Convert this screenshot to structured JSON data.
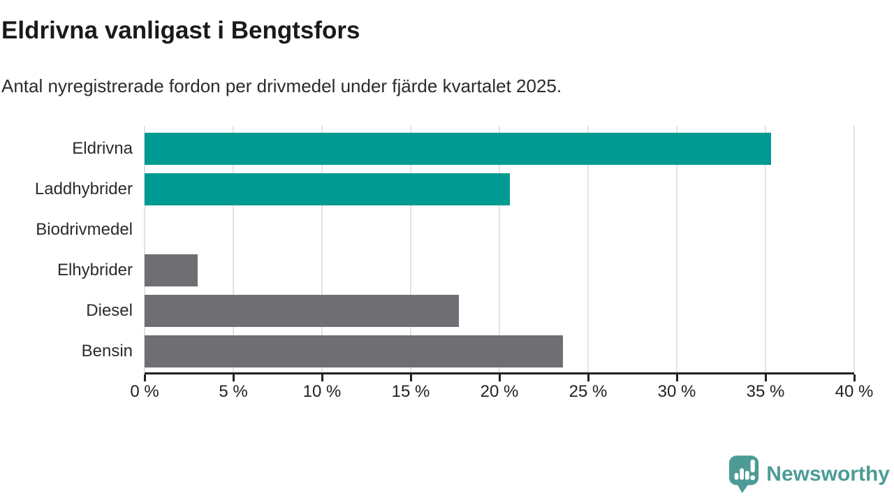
{
  "header": {
    "title": "Eldrivna vanligast i Bengtsfors",
    "subtitle": "Antal nyregistrerade fordon per drivmedel under fjärde kvartalet 2025."
  },
  "chart_data": {
    "type": "bar",
    "orientation": "horizontal",
    "title": "Eldrivna vanligast i Bengtsfors",
    "subtitle": "Antal nyregistrerade fordon per drivmedel under fjärde kvartalet 2025.",
    "categories": [
      "Eldrivna",
      "Laddhybrider",
      "Biodrivmedel",
      "Elhybrider",
      "Diesel",
      "Bensin"
    ],
    "values": [
      35.3,
      20.6,
      0,
      3.0,
      17.7,
      23.6
    ],
    "unit": "%",
    "bar_colors": [
      "#009a93",
      "#009a93",
      "#6f6e73",
      "#6f6e73",
      "#6f6e73",
      "#6f6e73"
    ],
    "xlim": [
      0,
      40
    ],
    "x_ticks": [
      0,
      5,
      10,
      15,
      20,
      25,
      30,
      35,
      40
    ],
    "x_tick_labels": [
      "0 %",
      "5 %",
      "10 %",
      "15 %",
      "20 %",
      "25 %",
      "30 %",
      "35 %",
      "40 %"
    ],
    "grid": "vertical-gridlines-on",
    "legend": "none",
    "xlabel": "",
    "ylabel": ""
  },
  "branding": {
    "logo_text": "Newsworthy"
  },
  "colors": {
    "accent_teal": "#009a93",
    "muted_bar_gray": "#6f6e73",
    "gridline": "#e3e3e3",
    "axis": "#222222",
    "title_text": "#1a1a1a",
    "label_text": "#2b2b2b",
    "logo_teal": "#4d9b96"
  }
}
